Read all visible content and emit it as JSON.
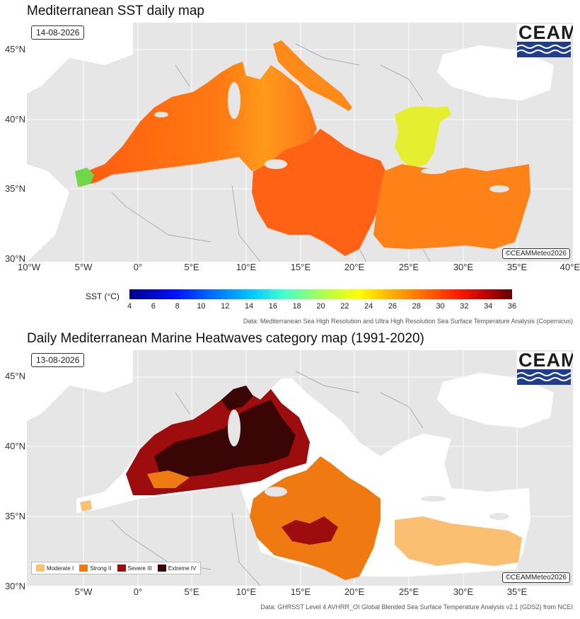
{
  "map1": {
    "title": "Mediterranean SST daily map",
    "date": "14-08-2026",
    "credit": "©CEAMMeteo2026",
    "logo_text": "CEAM",
    "y_ticks": [
      "45°N",
      "40°N",
      "35°N",
      "30°N"
    ],
    "x_ticks": [
      "10°W",
      "5°W",
      "0°",
      "5°E",
      "10°E",
      "15°E",
      "20°E",
      "25°E",
      "30°E",
      "35°E",
      "40°E"
    ],
    "colorbar_label": "SST (°C)",
    "colorbar_ticks": [
      "4",
      "6",
      "8",
      "10",
      "12",
      "14",
      "16",
      "18",
      "20",
      "22",
      "24",
      "26",
      "28",
      "30",
      "32",
      "34",
      "36"
    ],
    "source": "Data: Mediterranean Sea High Resolution and Ultra High Resolution Sea Surface Temperature Analysis (Copernicus)"
  },
  "map2": {
    "title": "Daily Mediterranean Marine Heatwaves category map (1991-2020)",
    "date": "13-08-2026",
    "credit": "©CEAMMeteo2026",
    "logo_text": "CEAM",
    "y_ticks": [
      "45°N",
      "40°N",
      "35°N",
      "30°N"
    ],
    "x_ticks": [
      "5°W",
      "0°",
      "5°E",
      "10°E",
      "15°E",
      "20°E",
      "25°E",
      "30°E",
      "35°E"
    ],
    "legend": [
      {
        "label": "Moderate I",
        "color": "#fbbf72"
      },
      {
        "label": "Strong II",
        "color": "#f07a12"
      },
      {
        "label": "Severe III",
        "color": "#9e0d0d"
      },
      {
        "label": "Extreme IV",
        "color": "#3a0505"
      }
    ],
    "source": "Data: GHRSST Level 4 AVHRR_OI Global Blended Sea Surface Temperature Analysis v2.1 (GDS2) from NCEI"
  }
}
